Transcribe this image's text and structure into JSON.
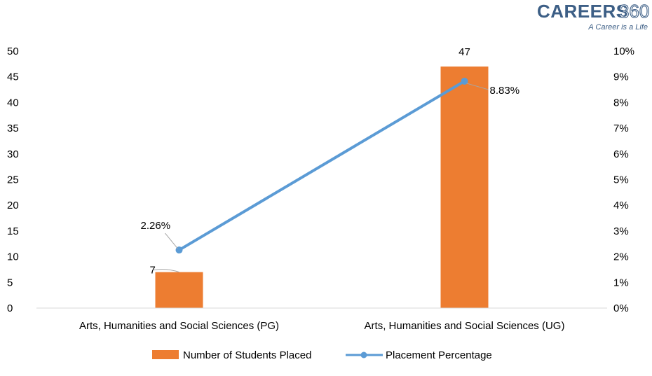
{
  "logo": {
    "brand": "CAREERS",
    "number": "360",
    "tagline": "A Career is a Life"
  },
  "chart_data": {
    "type": "bar",
    "categories": [
      "Arts, Humanities and Social Sciences (PG)",
      "Arts, Humanities and Social Sciences (UG)"
    ],
    "series": [
      {
        "name": "Number of Students Placed",
        "type": "bar",
        "axis": "left",
        "values": [
          7,
          47
        ],
        "labels": [
          "7",
          "47"
        ],
        "color": "#ed7d31"
      },
      {
        "name": "Placement Percentage",
        "type": "line",
        "axis": "right",
        "values": [
          2.26,
          8.83
        ],
        "labels": [
          "2.26%",
          "8.83%"
        ],
        "color": "#5b9bd5"
      }
    ],
    "y_left": {
      "min": 0,
      "max": 50,
      "step": 5,
      "ticks": [
        "0",
        "5",
        "10",
        "15",
        "20",
        "25",
        "30",
        "35",
        "40",
        "45",
        "50"
      ]
    },
    "y_right": {
      "min": 0,
      "max": 10,
      "step": 1,
      "ticks": [
        "0%",
        "1%",
        "2%",
        "3%",
        "4%",
        "5%",
        "6%",
        "7%",
        "8%",
        "9%",
        "10%"
      ]
    },
    "grid": false,
    "legend": "bottom"
  }
}
